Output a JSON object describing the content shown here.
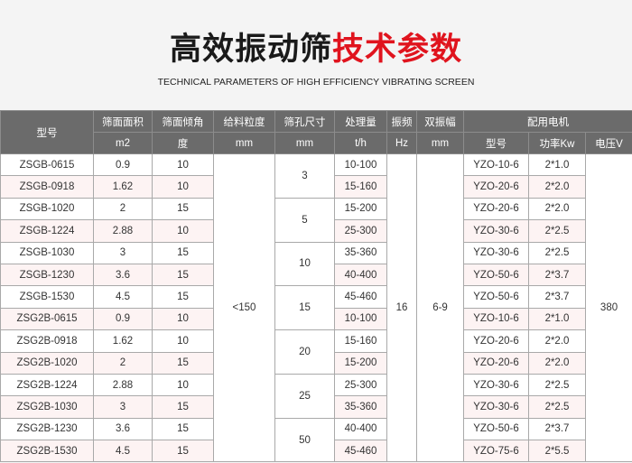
{
  "title": {
    "black": "高效振动筛",
    "red": "技术参数"
  },
  "subtitle": "TECHNICAL PARAMETERS OF HIGH EFFICIENCY VIBRATING SCREEN",
  "colors": {
    "header_bg": "#6b6b6b",
    "title_red": "#e0141e",
    "alt_row": "#fdf3f3"
  },
  "headers": {
    "model": "型号",
    "area": "筛面面积",
    "angle": "筛面倾角",
    "feed": "给料粒度",
    "hole": "筛孔尺寸",
    "capacity": "处理量",
    "freq": "振频",
    "amp": "双振幅",
    "motor": "配用电机",
    "units": {
      "area": "m2",
      "angle": "度",
      "feed": "mm",
      "hole": "mm",
      "capacity": "t/h",
      "freq": "Hz",
      "amp": "mm",
      "motor_model": "型号",
      "power": "功率Kw",
      "voltage": "电压V"
    }
  },
  "shared": {
    "feed": "<150",
    "freq": "16",
    "amp": "6-9",
    "voltage": "380"
  },
  "holes": [
    "3",
    "5",
    "10",
    "15",
    "20",
    "25",
    "50"
  ],
  "rows": [
    {
      "model": "ZSGB-0615",
      "area": "0.9",
      "angle": "10",
      "capacity": "10-100",
      "motor": "YZO-10-6",
      "power": "2*1.0"
    },
    {
      "model": "ZSGB-0918",
      "area": "1.62",
      "angle": "10",
      "capacity": "15-160",
      "motor": "YZO-20-6",
      "power": "2*2.0"
    },
    {
      "model": "ZSGB-1020",
      "area": "2",
      "angle": "15",
      "capacity": "15-200",
      "motor": "YZO-20-6",
      "power": "2*2.0"
    },
    {
      "model": "ZSGB-1224",
      "area": "2.88",
      "angle": "10",
      "capacity": "25-300",
      "motor": "YZO-30-6",
      "power": "2*2.5"
    },
    {
      "model": "ZSGB-1030",
      "area": "3",
      "angle": "15",
      "capacity": "35-360",
      "motor": "YZO-30-6",
      "power": "2*2.5"
    },
    {
      "model": "ZSGB-1230",
      "area": "3.6",
      "angle": "15",
      "capacity": "40-400",
      "motor": "YZO-50-6",
      "power": "2*3.7"
    },
    {
      "model": "ZSGB-1530",
      "area": "4.5",
      "angle": "15",
      "capacity": "45-460",
      "motor": "YZO-50-6",
      "power": "2*3.7"
    },
    {
      "model": "ZSG2B-0615",
      "area": "0.9",
      "angle": "10",
      "capacity": "10-100",
      "motor": "YZO-10-6",
      "power": "2*1.0"
    },
    {
      "model": "ZSG2B-0918",
      "area": "1.62",
      "angle": "10",
      "capacity": "15-160",
      "motor": "YZO-20-6",
      "power": "2*2.0"
    },
    {
      "model": "ZSG2B-1020",
      "area": "2",
      "angle": "15",
      "capacity": "15-200",
      "motor": "YZO-20-6",
      "power": "2*2.0"
    },
    {
      "model": "ZSG2B-1224",
      "area": "2.88",
      "angle": "10",
      "capacity": "25-300",
      "motor": "YZO-30-6",
      "power": "2*2.5"
    },
    {
      "model": "ZSG2B-1030",
      "area": "3",
      "angle": "15",
      "capacity": "35-360",
      "motor": "YZO-30-6",
      "power": "2*2.5"
    },
    {
      "model": "ZSG2B-1230",
      "area": "3.6",
      "angle": "15",
      "capacity": "40-400",
      "motor": "YZO-50-6",
      "power": "2*3.7"
    },
    {
      "model": "ZSG2B-1530",
      "area": "4.5",
      "angle": "15",
      "capacity": "45-460",
      "motor": "YZO-75-6",
      "power": "2*5.5"
    }
  ]
}
